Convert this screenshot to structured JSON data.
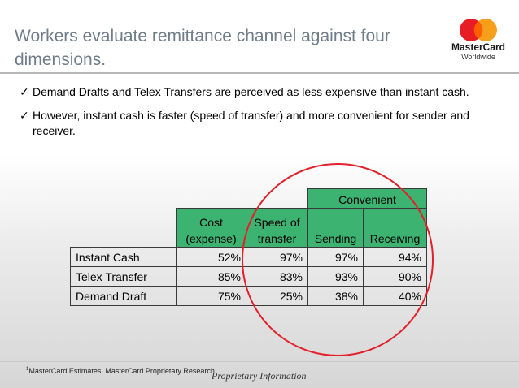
{
  "title": "Workers evaluate remittance channel against four dimensions.",
  "logo": {
    "wordmark": "MasterCard",
    "sub": "Worldwide",
    "colors": {
      "red": "#e81c24",
      "orange": "#f79e1b"
    }
  },
  "bullets": [
    "Demand Drafts and Telex Transfers are perceived as less expensive than instant cash.",
    "However, instant cash is faster (speed of transfer) and more convenient for sender and receiver."
  ],
  "table": {
    "group_header": "Convenient",
    "columns": [
      "Cost\n(expense)",
      "Speed of\ntransfer",
      "Sending",
      "Receiving"
    ],
    "rows": [
      {
        "label": "Instant Cash",
        "values": [
          "52%",
          "97%",
          "97%",
          "94%"
        ]
      },
      {
        "label": "Telex Transfer",
        "values": [
          "85%",
          "83%",
          "93%",
          "90%"
        ]
      },
      {
        "label": "Demand Draft",
        "values": [
          "75%",
          "25%",
          "38%",
          "40%"
        ]
      }
    ]
  },
  "footnote": {
    "marker": "1",
    "text": "MasterCard Estimates, MasterCard Proprietary Research"
  },
  "proprietary": "Proprietary  Information",
  "colors": {
    "title": "#6f7d8a",
    "header_fill": "#3cb371",
    "highlight_circle": "#e3202a"
  }
}
